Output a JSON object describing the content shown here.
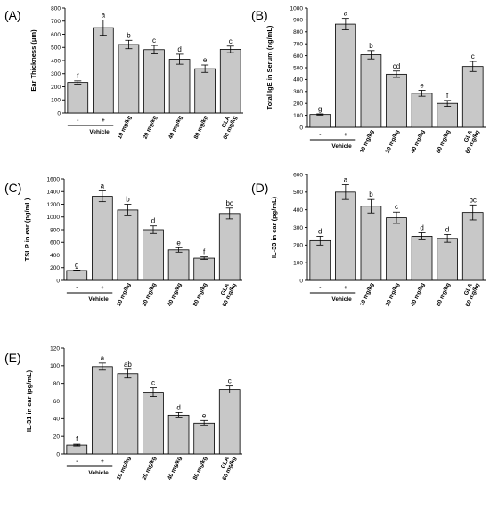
{
  "chart_data": [
    {
      "type": "bar",
      "panel_label": "(A)",
      "ylabel": "Ear Thickness (μm)",
      "ylim": [
        0,
        800
      ],
      "yticks": [
        0,
        100,
        200,
        300,
        400,
        500,
        600,
        700,
        800
      ],
      "categories": [
        "-",
        "+",
        "10 mg/kg",
        "20 mg/kg",
        "40 mg/kg",
        "80 mg/kg",
        "GLA\n60 mg/kg"
      ],
      "group_label": "Vehicle",
      "values": [
        233,
        650,
        522,
        483,
        410,
        338,
        485
      ],
      "errors": [
        12,
        58,
        32,
        32,
        38,
        28,
        25
      ],
      "significance": [
        "f",
        "a",
        "b",
        "c",
        "d",
        "e",
        "c"
      ]
    },
    {
      "type": "bar",
      "panel_label": "(B)",
      "ylabel": "Total IgE in Serum (ng/mL)",
      "ylim": [
        0,
        1000
      ],
      "yticks": [
        0,
        100,
        200,
        300,
        400,
        500,
        600,
        700,
        800,
        900,
        1000
      ],
      "categories": [
        "-",
        "+",
        "10 mg/kg",
        "20 mg/kg",
        "40 mg/kg",
        "80 mg/kg",
        "GLA\n60 mg/kg"
      ],
      "group_label": "Vehicle",
      "values": [
        107,
        865,
        608,
        445,
        285,
        200,
        510
      ],
      "errors": [
        5,
        48,
        35,
        27,
        25,
        25,
        42
      ],
      "significance": [
        "g",
        "a",
        "b",
        "cd",
        "e",
        "f",
        "c"
      ]
    },
    {
      "type": "bar",
      "panel_label": "(C)",
      "ylabel": "TSLP in ear (pg/mL)",
      "ylim": [
        0,
        1600
      ],
      "yticks": [
        0,
        200,
        400,
        600,
        800,
        1000,
        1200,
        1400,
        1600
      ],
      "categories": [
        "-",
        "+",
        "10 mg/kg",
        "20 mg/kg",
        "40 mg/kg",
        "80 mg/kg",
        "GLA\n60 mg/kg"
      ],
      "group_label": "Vehicle",
      "values": [
        155,
        1325,
        1110,
        800,
        480,
        350,
        1055
      ],
      "errors": [
        8,
        85,
        90,
        60,
        35,
        20,
        85
      ],
      "significance": [
        "g",
        "a",
        "b",
        "d",
        "e",
        "f",
        "bc"
      ]
    },
    {
      "type": "bar",
      "panel_label": "(D)",
      "ylabel": "IL-33 in ear (pg/mL)",
      "ylim": [
        0,
        600
      ],
      "yticks": [
        0,
        100,
        200,
        300,
        400,
        500,
        600
      ],
      "categories": [
        "-",
        "+",
        "10 mg/kg",
        "20 mg/kg",
        "40 mg/kg",
        "80 mg/kg",
        "GLA\n60 mg/kg"
      ],
      "group_label": "Vehicle",
      "values": [
        225,
        500,
        420,
        355,
        250,
        238,
        385
      ],
      "errors": [
        25,
        42,
        38,
        32,
        20,
        22,
        42
      ],
      "significance": [
        "d",
        "a",
        "b",
        "c",
        "d",
        "d",
        "bc"
      ]
    },
    {
      "type": "bar",
      "panel_label": "(E)",
      "ylabel": "IL-31 in ear (pg/mL)",
      "ylim": [
        0,
        120
      ],
      "yticks": [
        0,
        20,
        40,
        60,
        80,
        100,
        120
      ],
      "categories": [
        "-",
        "+",
        "10 mg/kg",
        "20 mg/kg",
        "40 mg/kg",
        "80 mg/kg",
        "GLA\n60 mg/kg"
      ],
      "group_label": "Vehicle",
      "values": [
        10,
        99,
        91,
        70,
        44,
        35,
        73
      ],
      "errors": [
        1,
        4,
        5,
        5,
        3,
        3,
        4
      ],
      "significance": [
        "f",
        "a",
        "ab",
        "c",
        "d",
        "e",
        "c"
      ]
    }
  ]
}
